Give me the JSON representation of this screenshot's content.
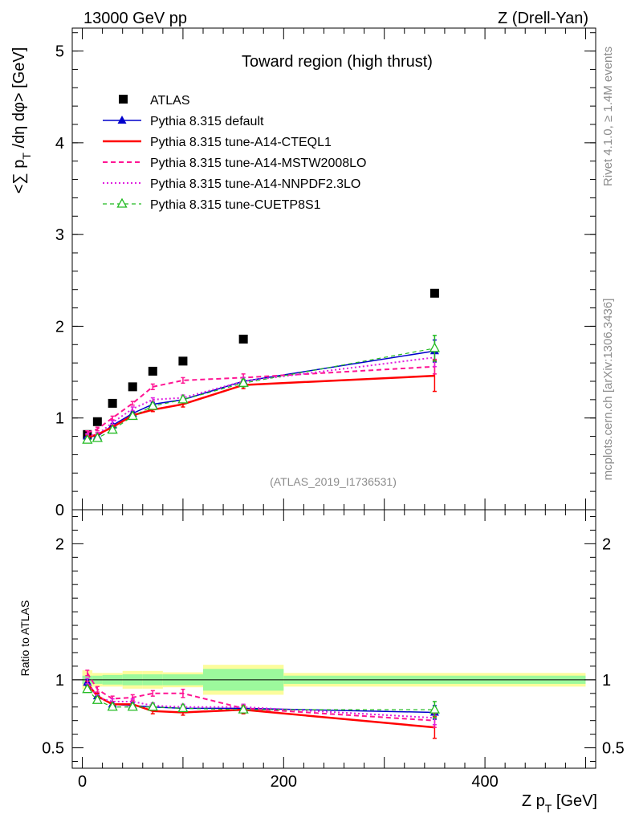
{
  "header": {
    "energy_label": "13000 GeV pp",
    "process_label": "Z (Drell-Yan)",
    "plot_title": "Toward region (high thrust)",
    "analysis_id": "(ATLAS_2019_I1736531)",
    "side_label_top": "Rivet 4.1.0, ≥ 1.4M events",
    "side_label_bottom": "mcplots.cern.ch [arXiv:1306.3436]"
  },
  "chart_data": [
    {
      "type": "line",
      "panel": "main",
      "title": "Toward region (high thrust)",
      "xlabel": "Z p_T [GeV]",
      "ylabel": "<∑ p_T /dη dφ> [GeV]",
      "xlim": [
        -10,
        510
      ],
      "ylim": [
        0,
        5.25
      ],
      "yticks": [
        0,
        1,
        2,
        3,
        4,
        5
      ],
      "ytick_labels": [
        "0",
        "1",
        "2",
        "3",
        "4",
        "5"
      ],
      "x": [
        5,
        15,
        30,
        50,
        70,
        100,
        160,
        350
      ],
      "series": [
        {
          "name": "ATLAS",
          "style": "data",
          "color": "#000000",
          "values": [
            0.82,
            0.96,
            1.16,
            1.34,
            1.51,
            1.62,
            1.86,
            2.36
          ]
        },
        {
          "name": "Pythia 8.315 default",
          "style": "solid-triangle",
          "color": "#0000cc",
          "values": [
            0.8,
            0.8,
            0.92,
            1.05,
            1.15,
            1.2,
            1.4,
            1.73
          ],
          "err": [
            0.02,
            0.02,
            0.02,
            0.02,
            0.02,
            0.03,
            0.04,
            0.12
          ]
        },
        {
          "name": "Pythia 8.315 tune-A14-CTEQL1",
          "style": "solid-thick",
          "color": "#ff0000",
          "values": [
            0.79,
            0.82,
            0.9,
            1.03,
            1.09,
            1.15,
            1.36,
            1.46
          ],
          "err": [
            0.02,
            0.02,
            0.02,
            0.02,
            0.02,
            0.03,
            0.04,
            0.17
          ]
        },
        {
          "name": "Pythia 8.315 tune-A14-MSTW2008LO",
          "style": "dashed",
          "color": "#ff1493",
          "values": [
            0.84,
            0.88,
            1.0,
            1.16,
            1.34,
            1.41,
            1.44,
            1.56
          ],
          "err": [
            0.02,
            0.02,
            0.02,
            0.02,
            0.03,
            0.03,
            0.04,
            0.08
          ]
        },
        {
          "name": "Pythia 8.315 tune-A14-NNPDF2.3LO",
          "style": "dotted",
          "color": "#e020e0",
          "values": [
            0.81,
            0.82,
            0.95,
            1.1,
            1.2,
            1.22,
            1.4,
            1.66
          ],
          "err": [
            0.02,
            0.02,
            0.02,
            0.02,
            0.02,
            0.03,
            0.04,
            0.1
          ]
        },
        {
          "name": "Pythia 8.315 tune-CUETP8S1",
          "style": "dashed-open-triangle",
          "color": "#22bb22",
          "values": [
            0.76,
            0.78,
            0.87,
            1.02,
            1.13,
            1.2,
            1.38,
            1.76
          ],
          "err": [
            0.02,
            0.02,
            0.02,
            0.02,
            0.02,
            0.03,
            0.04,
            0.14
          ]
        }
      ]
    },
    {
      "type": "line",
      "panel": "ratio",
      "ylabel": "Ratio to ATLAS",
      "xlabel": "Z p_T [GeV]",
      "xlim": [
        -10,
        510
      ],
      "ylim": [
        0.35,
        2.25
      ],
      "yticks": [
        0.5,
        1,
        2
      ],
      "ytick_labels": [
        "0.5",
        "1",
        "2"
      ],
      "xticks": [
        0,
        200,
        400
      ],
      "xtick_labels": [
        "0",
        "200",
        "400"
      ],
      "bins": [
        [
          0,
          10
        ],
        [
          10,
          20
        ],
        [
          20,
          40
        ],
        [
          40,
          60
        ],
        [
          60,
          80
        ],
        [
          80,
          120
        ],
        [
          120,
          200
        ],
        [
          200,
          500
        ]
      ],
      "stat_band": [
        0.03,
        0.03,
        0.035,
        0.04,
        0.04,
        0.04,
        0.08,
        0.03
      ],
      "total_band": [
        0.07,
        0.05,
        0.05,
        0.065,
        0.065,
        0.055,
        0.11,
        0.05
      ],
      "x": [
        5,
        15,
        30,
        50,
        70,
        100,
        160,
        350
      ],
      "series": [
        {
          "name": "Pythia 8.315 default",
          "color": "#0000cc",
          "style": "solid-triangle",
          "values": [
            0.98,
            0.88,
            0.82,
            0.81,
            0.8,
            0.79,
            0.79,
            0.76
          ],
          "err": [
            0.02,
            0.02,
            0.02,
            0.02,
            0.02,
            0.02,
            0.02,
            0.05
          ]
        },
        {
          "name": "Pythia 8.315 tune-A14-CTEQL1",
          "color": "#ff0000",
          "style": "solid-thick",
          "values": [
            0.97,
            0.88,
            0.82,
            0.82,
            0.77,
            0.76,
            0.78,
            0.65
          ],
          "err": [
            0.02,
            0.02,
            0.02,
            0.02,
            0.02,
            0.02,
            0.03,
            0.08
          ]
        },
        {
          "name": "Pythia 8.315 tune-A14-MSTW2008LO",
          "color": "#ff1493",
          "style": "dashed",
          "values": [
            1.05,
            0.93,
            0.86,
            0.87,
            0.9,
            0.9,
            0.79,
            0.7
          ],
          "err": [
            0.02,
            0.02,
            0.02,
            0.02,
            0.02,
            0.03,
            0.03,
            0.05
          ]
        },
        {
          "name": "Pythia 8.315 tune-A14-NNPDF2.3LO",
          "color": "#e020e0",
          "style": "dotted",
          "values": [
            0.99,
            0.87,
            0.84,
            0.84,
            0.81,
            0.8,
            0.8,
            0.72
          ],
          "err": [
            0.02,
            0.02,
            0.02,
            0.02,
            0.02,
            0.02,
            0.02,
            0.05
          ]
        },
        {
          "name": "Pythia 8.315 tune-CUETP8S1",
          "color": "#22bb22",
          "style": "dashed-open-triangle",
          "values": [
            0.93,
            0.85,
            0.8,
            0.8,
            0.8,
            0.79,
            0.78,
            0.78
          ],
          "err": [
            0.02,
            0.02,
            0.02,
            0.02,
            0.02,
            0.02,
            0.02,
            0.06
          ]
        }
      ]
    }
  ]
}
